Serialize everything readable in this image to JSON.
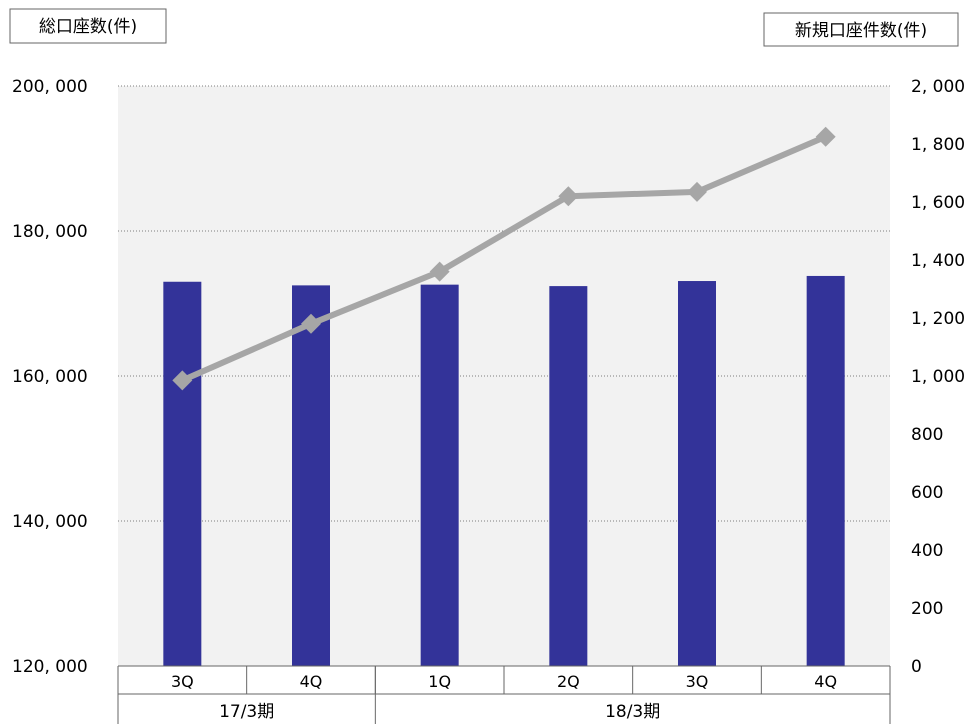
{
  "chart_data": {
    "type": "bar",
    "left_axis_title": "総口座数(件)",
    "right_axis_title": "新規口座件数(件)",
    "left_ylim": [
      120000,
      200000
    ],
    "left_ticks": [
      120000,
      140000,
      160000,
      180000,
      200000
    ],
    "left_tick_labels": [
      "120, 000",
      "140, 000",
      "160, 000",
      "180, 000",
      "200, 000"
    ],
    "right_ylim": [
      0,
      2000
    ],
    "right_ticks": [
      0,
      200,
      400,
      600,
      800,
      1000,
      1200,
      1400,
      1600,
      1800,
      2000
    ],
    "right_tick_labels": [
      "0",
      "200",
      "400",
      "600",
      "800",
      "1, 000",
      "1, 200",
      "1, 400",
      "1, 600",
      "1, 800",
      "2, 000"
    ],
    "categories": [
      "3Q",
      "4Q",
      "1Q",
      "2Q",
      "3Q",
      "4Q"
    ],
    "groups": [
      {
        "label": "17/3期",
        "count": 2
      },
      {
        "label": "18/3期",
        "count": 4
      }
    ],
    "series": [
      {
        "type": "bar",
        "axis": "left",
        "color": "#333399",
        "values": [
          173000,
          172500,
          172600,
          172400,
          173100,
          173800
        ]
      },
      {
        "type": "line",
        "axis": "right",
        "color": "#a6a6a6",
        "marker": "diamond",
        "values": [
          985,
          1180,
          1360,
          1620,
          1635,
          1825
        ]
      }
    ],
    "grid": true,
    "plot_background": "#f2f2f2"
  }
}
